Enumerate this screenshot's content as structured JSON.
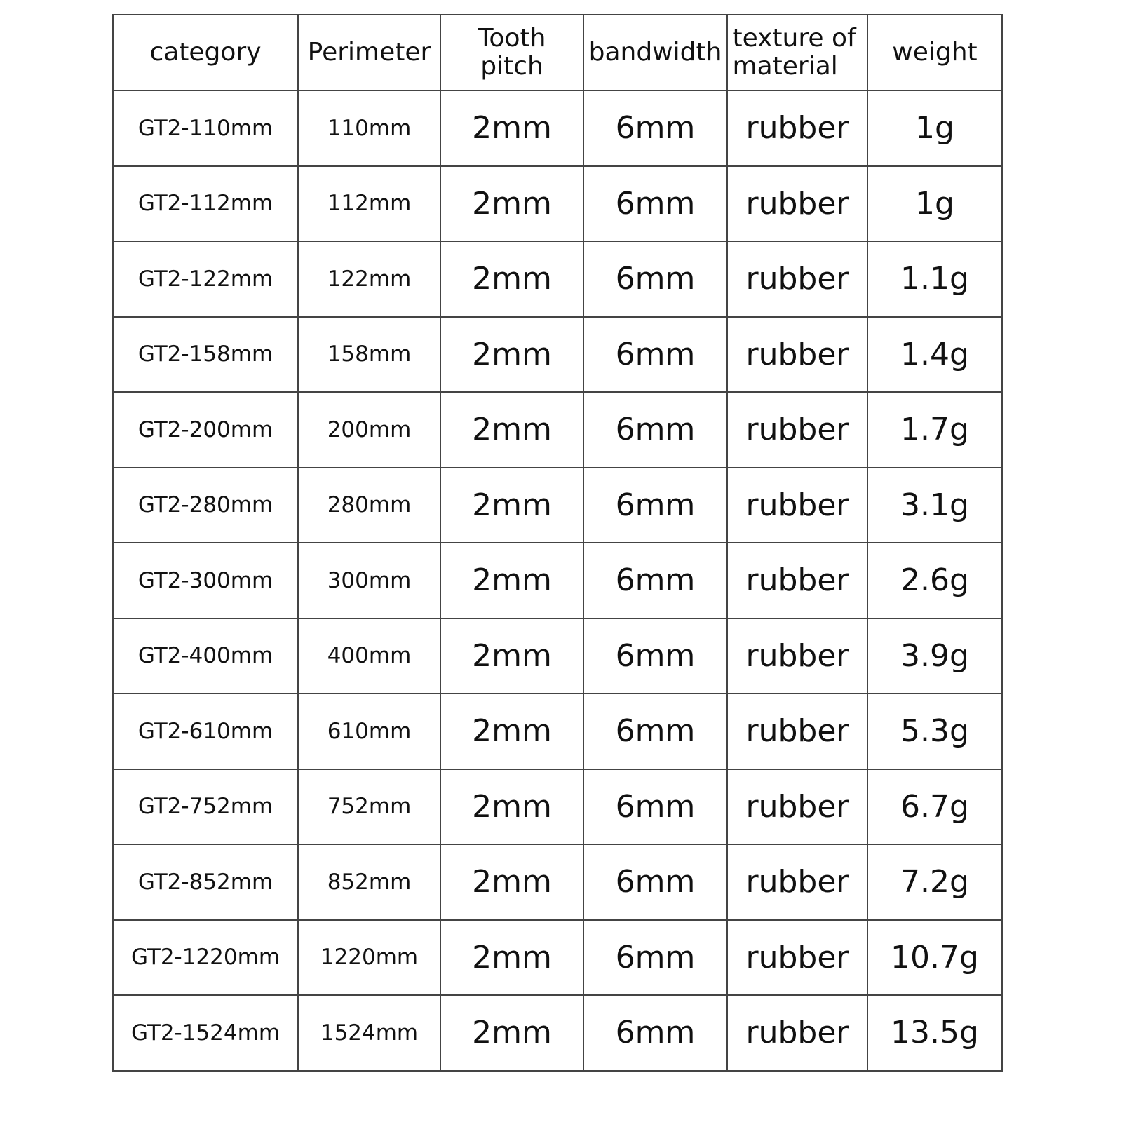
{
  "table": {
    "header": [
      "category",
      "Perimeter",
      "Tooth pitch",
      "bandwidth",
      "texture of material",
      "weight"
    ],
    "rows": [
      [
        "GT2-110mm",
        "110mm",
        "2mm",
        "6mm",
        "rubber",
        "1g"
      ],
      [
        "GT2-112mm",
        "112mm",
        "2mm",
        "6mm",
        "rubber",
        "1g"
      ],
      [
        "GT2-122mm",
        "122mm",
        "2mm",
        "6mm",
        "rubber",
        "1.1g"
      ],
      [
        "GT2-158mm",
        "158mm",
        "2mm",
        "6mm",
        "rubber",
        "1.4g"
      ],
      [
        "GT2-200mm",
        "200mm",
        "2mm",
        "6mm",
        "rubber",
        "1.7g"
      ],
      [
        "GT2-280mm",
        "280mm",
        "2mm",
        "6mm",
        "rubber",
        "3.1g"
      ],
      [
        "GT2-300mm",
        "300mm",
        "2mm",
        "6mm",
        "rubber",
        "2.6g"
      ],
      [
        "GT2-400mm",
        "400mm",
        "2mm",
        "6mm",
        "rubber",
        "3.9g"
      ],
      [
        "GT2-610mm",
        "610mm",
        "2mm",
        "6mm",
        "rubber",
        "5.3g"
      ],
      [
        "GT2-752mm",
        "752mm",
        "2mm",
        "6mm",
        "rubber",
        "6.7g"
      ],
      [
        "GT2-852mm",
        "852mm",
        "2mm",
        "6mm",
        "rubber",
        "7.2g"
      ],
      [
        "GT2-1220mm",
        "1220mm",
        "2mm",
        "6mm",
        "rubber",
        "10.7g"
      ],
      [
        "GT2-1524mm",
        "1524mm",
        "2mm",
        "6mm",
        "rubber",
        "13.5g"
      ]
    ]
  }
}
